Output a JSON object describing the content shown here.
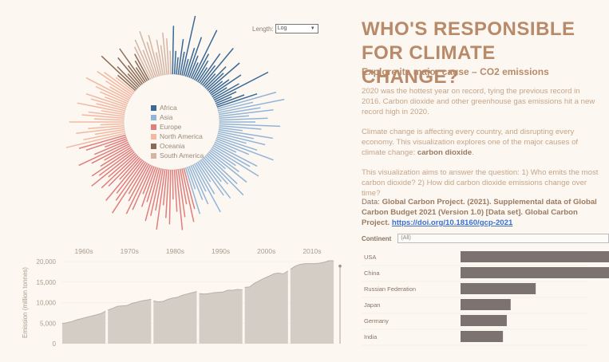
{
  "title": "WHO'S RESPONSIBLE FOR CLIMATE CHANGE?",
  "subtitle": "Explore its major cause – CO2 emissions",
  "paragraphs": {
    "p1": "2020 was the hottest year on record, tying the previous record in 2016. Carbon dioxide and other greenhouse gas emissions hit a new record high in 2020.",
    "p2": "Climate change is affecting every country, and disrupting every economy. This visualization explores one of the major causes of climate change:",
    "p2_bold": "carbon dioxide",
    "p3": "This visualization aims to answer the question: 1) Who emits the most carbon dioxide? 2) How did carbon dioxide emissions change over time?",
    "p4_prefix": "Data:",
    "p4_source": "Global Carbon Project. (2021). Supplemental data of Global Carbon Budget 2021 (Version 1.0) [Data set]. Global Carbon Project.",
    "p4_link": "https://doi.org/10.18160/gcp-2021"
  },
  "controls": {
    "length_label": "Length:",
    "length_value": "Log",
    "continent_label": "Continent",
    "continent_value": "(All)"
  },
  "legend": [
    {
      "name": "Africa",
      "color": "#3a6897"
    },
    {
      "name": "Asia",
      "color": "#92b4d8"
    },
    {
      "name": "Europe",
      "color": "#e07d7d"
    },
    {
      "name": "North America",
      "color": "#f3b7a2"
    },
    {
      "name": "Oceania",
      "color": "#8b6a55"
    },
    {
      "name": "South America",
      "color": "#d4b5a5"
    }
  ],
  "chart_data": [
    {
      "type": "radial-bar",
      "description_order": "countries grouped by continent, bar length on log scale",
      "series": [
        {
          "continent": "Africa",
          "values": [
            0.7,
            0.3,
            0.2,
            0.5,
            0.3,
            0.9,
            0.2,
            0.4,
            0.6,
            0.3,
            0.2,
            0.8,
            0.4,
            0.3,
            0.2,
            0.5,
            0.3,
            0.7,
            0.2,
            0.4,
            0.3,
            0.6,
            0.2,
            0.3,
            0.5,
            0.2,
            0.4,
            0.9,
            0.3,
            0.2,
            0.4,
            0.6
          ]
        },
        {
          "continent": "Asia",
          "values": [
            0.9,
            0.5,
            1.0,
            0.6,
            0.8,
            0.4,
            0.7,
            0.5,
            0.9,
            0.6,
            0.3,
            0.8,
            0.5,
            0.7,
            0.4,
            0.6,
            0.9,
            0.5,
            0.3,
            0.7,
            0.6,
            0.8,
            0.4,
            0.5,
            0.7,
            0.3,
            0.6,
            0.8,
            0.5,
            0.4,
            0.7,
            0.6,
            0.3,
            0.5,
            0.8,
            0.4,
            0.6,
            0.5,
            0.3,
            0.7
          ]
        },
        {
          "continent": "Europe",
          "values": [
            0.6,
            0.8,
            0.5,
            0.7,
            0.9,
            0.6,
            0.4,
            0.8,
            0.7,
            0.5,
            0.9,
            0.6,
            0.7,
            0.8,
            0.5,
            0.6,
            0.4,
            0.7,
            0.8,
            0.6,
            0.5,
            0.9,
            0.7,
            0.6,
            0.8,
            0.4,
            0.6,
            0.7,
            0.5,
            0.8,
            0.6,
            0.7,
            0.5,
            0.4,
            0.6,
            0.8,
            0.5,
            0.3,
            0.6,
            0.7
          ]
        },
        {
          "continent": "North America",
          "values": [
            0.9,
            0.6,
            0.4,
            0.7,
            0.5,
            0.3,
            0.8,
            0.4,
            0.6,
            0.5,
            0.3,
            0.7,
            0.4,
            0.5,
            0.6,
            0.3,
            0.4,
            0.5,
            0.7,
            0.3,
            0.4,
            0.6,
            0.5,
            0.3
          ]
        },
        {
          "continent": "Oceania",
          "values": [
            0.3,
            0.7,
            0.4,
            0.2,
            0.5,
            0.3,
            0.6,
            0.2,
            0.3,
            0.4
          ]
        },
        {
          "continent": "South America",
          "values": [
            0.5,
            0.6,
            0.4,
            0.7,
            0.5,
            0.6,
            0.3,
            0.5,
            0.4,
            0.6,
            0.5,
            0.3
          ]
        }
      ]
    },
    {
      "type": "area",
      "title": "",
      "ylabel": "Emission (million tonnes)",
      "ylim": [
        0,
        20000
      ],
      "yticks": [
        "0",
        "5,000",
        "10,000",
        "15,000",
        "20,000"
      ],
      "panels": [
        "1960s",
        "1970s",
        "1980s",
        "1990s",
        "2000s",
        "2010s"
      ],
      "values": [
        [
          4900,
          5100,
          5400,
          5800,
          6100,
          6400,
          6700,
          7000,
          7300,
          7900
        ],
        [
          8200,
          8600,
          9100,
          9200,
          9300,
          9800,
          10100,
          10400,
          10600,
          10800
        ],
        [
          10400,
          10200,
          10300,
          10800,
          11100,
          11300,
          11800,
          12100,
          12400,
          12700
        ],
        [
          12200,
          12100,
          12200,
          12400,
          12500,
          12600,
          13000,
          13000,
          13200,
          13100
        ],
        [
          13700,
          13800,
          14700,
          15300,
          15900,
          16400,
          17000,
          17200,
          17000,
          17700
        ],
        [
          18100,
          18900,
          19300,
          19500,
          19500,
          19500,
          19600,
          19800,
          20200,
          20200
        ]
      ],
      "last_point": 18900
    },
    {
      "type": "bar",
      "categories": [
        "USA",
        "China",
        "Russian Federation",
        "Japan",
        "Germany",
        "India"
      ],
      "values": [
        410,
        300,
        117,
        78,
        72,
        66
      ]
    }
  ]
}
